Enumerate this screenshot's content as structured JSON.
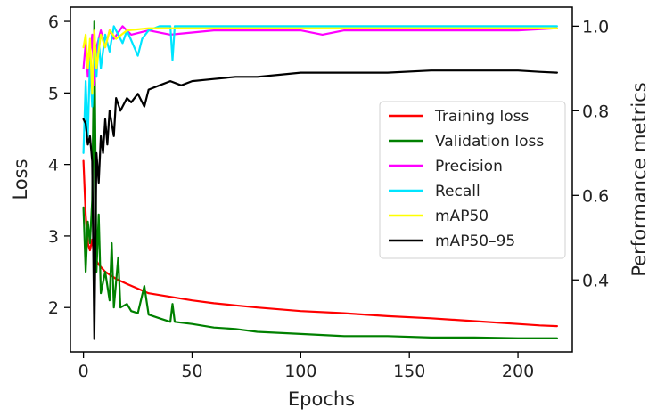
{
  "chart_data": {
    "type": "line",
    "xlabel": "Epochs",
    "ylabel_left": "Loss",
    "ylabel_right": "Performance metrics",
    "xlim": [
      -6,
      225
    ],
    "ylim_left": [
      1.38,
      6.2
    ],
    "ylim_right": [
      0.23,
      1.045
    ],
    "xticks": [
      0,
      50,
      100,
      150,
      200
    ],
    "yticks_left": [
      2,
      3,
      4,
      5,
      6
    ],
    "yticks_right": [
      0.4,
      0.6,
      0.8,
      1.0
    ],
    "xtick_labels": [
      "0",
      "50",
      "100",
      "150",
      "200"
    ],
    "ytick_labels_left": [
      "2",
      "3",
      "4",
      "5",
      "6"
    ],
    "ytick_labels_right": [
      "0.4",
      "0.6",
      "0.8",
      "1.0"
    ],
    "grid": false,
    "legend_position": "center-right",
    "series": [
      {
        "name": "Training loss",
        "axis": "left",
        "color": "#ff0000",
        "points": [
          [
            0,
            4.05
          ],
          [
            1,
            3.3
          ],
          [
            2,
            2.9
          ],
          [
            3,
            2.8
          ],
          [
            4,
            2.95
          ],
          [
            5,
            2.7
          ],
          [
            7,
            2.6
          ],
          [
            10,
            2.5
          ],
          [
            15,
            2.4
          ],
          [
            20,
            2.33
          ],
          [
            30,
            2.2
          ],
          [
            40,
            2.15
          ],
          [
            50,
            2.1
          ],
          [
            60,
            2.06
          ],
          [
            70,
            2.03
          ],
          [
            80,
            2.0
          ],
          [
            100,
            1.95
          ],
          [
            120,
            1.92
          ],
          [
            140,
            1.88
          ],
          [
            160,
            1.85
          ],
          [
            180,
            1.81
          ],
          [
            200,
            1.77
          ],
          [
            210,
            1.75
          ],
          [
            218,
            1.74
          ]
        ]
      },
      {
        "name": "Validation loss",
        "axis": "left",
        "color": "#008000",
        "points": [
          [
            0,
            3.4
          ],
          [
            1,
            2.5
          ],
          [
            2,
            3.2
          ],
          [
            3,
            2.9
          ],
          [
            4,
            3.5
          ],
          [
            5,
            6.0
          ],
          [
            6,
            2.5
          ],
          [
            7,
            3.3
          ],
          [
            8,
            2.2
          ],
          [
            10,
            2.5
          ],
          [
            12,
            2.1
          ],
          [
            13,
            2.9
          ],
          [
            14,
            2.0
          ],
          [
            16,
            2.7
          ],
          [
            17,
            2.0
          ],
          [
            20,
            2.05
          ],
          [
            22,
            1.95
          ],
          [
            25,
            1.92
          ],
          [
            28,
            2.3
          ],
          [
            30,
            1.9
          ],
          [
            35,
            1.85
          ],
          [
            40,
            1.8
          ],
          [
            41,
            2.05
          ],
          [
            42,
            1.8
          ],
          [
            50,
            1.77
          ],
          [
            60,
            1.72
          ],
          [
            70,
            1.7
          ],
          [
            80,
            1.66
          ],
          [
            100,
            1.63
          ],
          [
            120,
            1.6
          ],
          [
            140,
            1.6
          ],
          [
            160,
            1.58
          ],
          [
            180,
            1.58
          ],
          [
            200,
            1.57
          ],
          [
            218,
            1.57
          ]
        ]
      },
      {
        "name": "Precision",
        "axis": "right",
        "color": "#ff00ff",
        "points": [
          [
            0,
            0.9
          ],
          [
            1,
            0.96
          ],
          [
            2,
            0.88
          ],
          [
            3,
            0.93
          ],
          [
            4,
            0.98
          ],
          [
            5,
            0.86
          ],
          [
            6,
            0.95
          ],
          [
            8,
            0.99
          ],
          [
            10,
            0.95
          ],
          [
            12,
            0.99
          ],
          [
            14,
            0.97
          ],
          [
            18,
            1.0
          ],
          [
            22,
            0.98
          ],
          [
            30,
            0.99
          ],
          [
            40,
            0.98
          ],
          [
            60,
            0.99
          ],
          [
            80,
            0.99
          ],
          [
            100,
            0.99
          ],
          [
            110,
            0.98
          ],
          [
            120,
            0.99
          ],
          [
            150,
            0.99
          ],
          [
            200,
            0.99
          ],
          [
            218,
            0.995
          ]
        ]
      },
      {
        "name": "Recall",
        "axis": "right",
        "color": "#00e5ff",
        "points": [
          [
            0,
            0.7
          ],
          [
            1,
            0.87
          ],
          [
            2,
            0.74
          ],
          [
            3,
            0.92
          ],
          [
            4,
            0.81
          ],
          [
            5,
            0.96
          ],
          [
            6,
            0.88
          ],
          [
            7,
            0.97
          ],
          [
            8,
            0.9
          ],
          [
            10,
            0.98
          ],
          [
            12,
            0.94
          ],
          [
            14,
            1.0
          ],
          [
            18,
            0.96
          ],
          [
            20,
            0.99
          ],
          [
            25,
            0.93
          ],
          [
            27,
            0.97
          ],
          [
            30,
            0.99
          ],
          [
            35,
            1.0
          ],
          [
            40,
            1.0
          ],
          [
            41,
            0.92
          ],
          [
            42,
            1.0
          ],
          [
            60,
            1.0
          ],
          [
            100,
            1.0
          ],
          [
            150,
            1.0
          ],
          [
            200,
            1.0
          ],
          [
            218,
            1.0
          ]
        ]
      },
      {
        "name": "mAP50",
        "axis": "right",
        "color": "#ffff00",
        "points": [
          [
            0,
            0.95
          ],
          [
            1,
            0.98
          ],
          [
            2,
            0.9
          ],
          [
            3,
            0.97
          ],
          [
            4,
            0.84
          ],
          [
            5,
            0.99
          ],
          [
            6,
            0.9
          ],
          [
            8,
            0.98
          ],
          [
            10,
            0.95
          ],
          [
            12,
            0.99
          ],
          [
            15,
            0.97
          ],
          [
            20,
            0.99
          ],
          [
            30,
            0.995
          ],
          [
            60,
            0.995
          ],
          [
            100,
            0.995
          ],
          [
            150,
            0.995
          ],
          [
            200,
            0.995
          ],
          [
            218,
            0.995
          ]
        ]
      },
      {
        "name": "mAP50–95",
        "axis": "right",
        "color": "#000000",
        "points": [
          [
            0,
            0.78
          ],
          [
            1,
            0.77
          ],
          [
            2,
            0.72
          ],
          [
            3,
            0.74
          ],
          [
            4,
            0.68
          ],
          [
            5,
            0.26
          ],
          [
            6,
            0.7
          ],
          [
            7,
            0.63
          ],
          [
            8,
            0.74
          ],
          [
            9,
            0.7
          ],
          [
            10,
            0.78
          ],
          [
            11,
            0.72
          ],
          [
            12,
            0.8
          ],
          [
            14,
            0.74
          ],
          [
            15,
            0.83
          ],
          [
            17,
            0.8
          ],
          [
            20,
            0.83
          ],
          [
            22,
            0.82
          ],
          [
            25,
            0.84
          ],
          [
            28,
            0.81
          ],
          [
            30,
            0.85
          ],
          [
            35,
            0.86
          ],
          [
            40,
            0.87
          ],
          [
            45,
            0.86
          ],
          [
            50,
            0.87
          ],
          [
            60,
            0.875
          ],
          [
            70,
            0.88
          ],
          [
            80,
            0.88
          ],
          [
            90,
            0.885
          ],
          [
            100,
            0.89
          ],
          [
            120,
            0.89
          ],
          [
            140,
            0.89
          ],
          [
            160,
            0.895
          ],
          [
            180,
            0.895
          ],
          [
            200,
            0.895
          ],
          [
            210,
            0.892
          ],
          [
            218,
            0.89
          ]
        ]
      }
    ]
  }
}
